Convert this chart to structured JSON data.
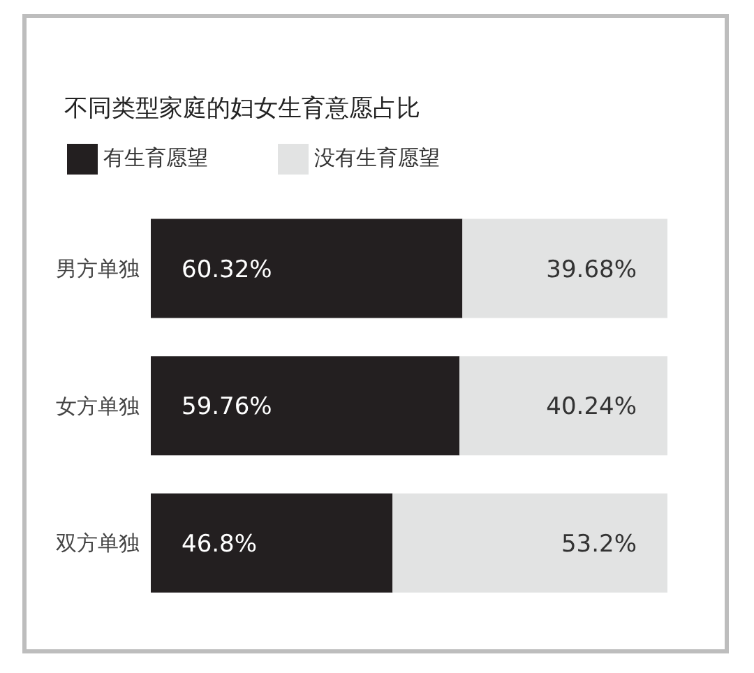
{
  "chart_data": {
    "type": "bar",
    "orientation": "horizontal",
    "stacked": true,
    "title": "不同类型家庭的妇女生育意愿占比",
    "categories": [
      "男方单独",
      "女方单独",
      "双方单独"
    ],
    "series": [
      {
        "name": "有生育愿望",
        "color": "#231f20",
        "values": [
          60.32,
          59.76,
          46.8
        ],
        "value_labels": [
          "60.32%",
          "59.76%",
          "46.8%"
        ]
      },
      {
        "name": "没有生育愿望",
        "color": "#e2e3e3",
        "values": [
          39.68,
          40.24,
          53.2
        ],
        "value_labels": [
          "39.68%",
          "40.24%",
          "53.2%"
        ]
      }
    ],
    "legend": "top left"
  }
}
